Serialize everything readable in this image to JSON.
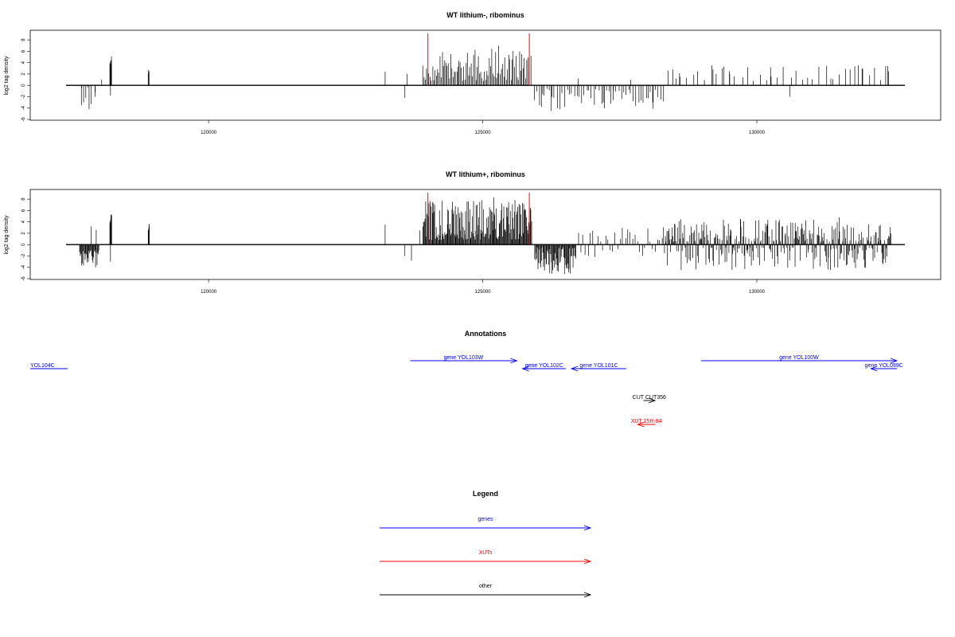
{
  "chart_data": [
    {
      "type": "bar",
      "title": "WT lithium-, ribominus",
      "ylabel": "log2 tag density",
      "xlim": [
        117400,
        132700
      ],
      "ylim": [
        -6,
        9
      ],
      "x_ticks": [
        120000,
        125000,
        130000
      ],
      "x_tick_labels": [
        "120000",
        "125000",
        "130000"
      ],
      "y_ticks": [
        -6,
        -4,
        -2,
        0,
        2,
        4,
        6,
        8
      ],
      "y_tick_labels": [
        "-6",
        "-4",
        "-2",
        "0",
        "2",
        "4",
        "6",
        "8"
      ],
      "red_markers_x": [
        124000,
        125850
      ],
      "segments": [
        {
          "from": 117700,
          "to": 118000,
          "min": 0.3,
          "max": 1.5,
          "step": 110,
          "sign": -1,
          "seed": 11
        },
        {
          "from": 118200,
          "to": 118230,
          "min": 3.5,
          "max": 5.2,
          "step": 6,
          "sign": 1,
          "seed": 12
        },
        {
          "from": 118900,
          "to": 118920,
          "min": 2.0,
          "max": 4.2,
          "step": 8,
          "sign": 1,
          "seed": 13
        },
        {
          "from": 123910,
          "to": 125850,
          "min": 0.8,
          "max": 7.0,
          "step": 22,
          "sign": 1,
          "seed": 14
        },
        {
          "from": 125950,
          "to": 128300,
          "min": 0.6,
          "max": 4.3,
          "step": 45,
          "sign": -1,
          "seed": 15
        },
        {
          "from": 128400,
          "to": 132400,
          "min": 0.8,
          "max": 3.6,
          "step": 110,
          "sign": 1,
          "seed": 16
        }
      ],
      "bars": [
        {
          "x": 117680,
          "y": -3.5
        },
        {
          "x": 117720,
          "y": -3.0
        },
        {
          "x": 117760,
          "y": -2.2
        },
        {
          "x": 117820,
          "y": -4.2
        },
        {
          "x": 117860,
          "y": -3.3
        },
        {
          "x": 117930,
          "y": -2.0
        },
        {
          "x": 118050,
          "y": 1.0
        },
        {
          "x": 118210,
          "y": -1.8
        },
        {
          "x": 123220,
          "y": 2.4
        },
        {
          "x": 123580,
          "y": -2.2
        },
        {
          "x": 123620,
          "y": 2.0
        },
        {
          "x": 125880,
          "y": 5.2
        },
        {
          "x": 126070,
          "y": -3.8
        },
        {
          "x": 126250,
          "y": -4.5
        },
        {
          "x": 126740,
          "y": 1.2
        },
        {
          "x": 127200,
          "y": -3.0
        },
        {
          "x": 127380,
          "y": -2.6
        },
        {
          "x": 127700,
          "y": 1.0
        },
        {
          "x": 128100,
          "y": -3.0
        },
        {
          "x": 128470,
          "y": 2.8
        },
        {
          "x": 128600,
          "y": 1.5
        },
        {
          "x": 129200,
          "y": 2.8
        },
        {
          "x": 129400,
          "y": 3.3
        },
        {
          "x": 129500,
          "y": 2.5
        },
        {
          "x": 130250,
          "y": 3.2
        },
        {
          "x": 130600,
          "y": -2.0
        },
        {
          "x": 131350,
          "y": 1.2
        },
        {
          "x": 131850,
          "y": 3.5
        },
        {
          "x": 131920,
          "y": 3.0
        },
        {
          "x": 132350,
          "y": 3.4
        },
        {
          "x": 132400,
          "y": 2.5
        }
      ]
    },
    {
      "type": "bar",
      "title": "WT lithium+, ribominus",
      "ylabel": "log2 tag density",
      "xlim": [
        117400,
        132700
      ],
      "ylim": [
        -6,
        9
      ],
      "x_ticks": [
        120000,
        125000,
        130000
      ],
      "x_tick_labels": [
        "120000",
        "125000",
        "130000"
      ],
      "y_ticks": [
        -6,
        -4,
        -2,
        0,
        2,
        4,
        6,
        8
      ],
      "y_tick_labels": [
        "-6",
        "-4",
        "-2",
        "0",
        "2",
        "4",
        "6",
        "8"
      ],
      "red_markers_x": [
        124000,
        125850
      ],
      "segments": [
        {
          "from": 117650,
          "to": 118000,
          "min": 1.0,
          "max": 4.2,
          "step": 12,
          "sign": -1,
          "seed": 21
        },
        {
          "from": 118200,
          "to": 118230,
          "min": 3.5,
          "max": 5.8,
          "step": 6,
          "sign": 1,
          "seed": 22
        },
        {
          "from": 118900,
          "to": 118920,
          "min": 2.0,
          "max": 4.2,
          "step": 6,
          "sign": 1,
          "seed": 23
        },
        {
          "from": 123910,
          "to": 125900,
          "min": 0.8,
          "max": 8.0,
          "step": 12,
          "sign": 1,
          "seed": 24
        },
        {
          "from": 125950,
          "to": 126700,
          "min": 0.5,
          "max": 5.2,
          "step": 12,
          "sign": -1,
          "seed": 25
        },
        {
          "from": 126700,
          "to": 128300,
          "min": 0.5,
          "max": 3.0,
          "step": 45,
          "sign": 0,
          "seed": 26
        },
        {
          "from": 128300,
          "to": 132450,
          "min": 0.5,
          "max": 4.5,
          "step": 14,
          "sign": 0,
          "seed": 27
        }
      ],
      "bars": [
        {
          "x": 117860,
          "y": 3.2
        },
        {
          "x": 117950,
          "y": 2.6
        },
        {
          "x": 118210,
          "y": -3.0
        },
        {
          "x": 123220,
          "y": 3.5
        },
        {
          "x": 123580,
          "y": -2.0
        },
        {
          "x": 123700,
          "y": -2.8
        },
        {
          "x": 123850,
          "y": 2.5
        },
        {
          "x": 125200,
          "y": 8.3
        },
        {
          "x": 128400,
          "y": 2.8
        },
        {
          "x": 129450,
          "y": -3.0
        },
        {
          "x": 129700,
          "y": 4.5
        },
        {
          "x": 130700,
          "y": 3.8
        },
        {
          "x": 131500,
          "y": 4.8
        },
        {
          "x": 131650,
          "y": -3.5
        }
      ]
    }
  ],
  "annotations": {
    "title": "Annotations",
    "xlim": [
      117400,
      132700
    ],
    "features": [
      {
        "label": "YOL104C",
        "start": 117400,
        "end": 118050,
        "row": 0,
        "strand": "none",
        "color": "#0000ff",
        "label_at": "start"
      },
      {
        "label": "gene YOL103W",
        "start": 124000,
        "end": 125850,
        "row": -1,
        "strand": "+",
        "color": "#0000ff",
        "label_at": "center"
      },
      {
        "label": "gene YOL102C",
        "start": 125950,
        "end": 126700,
        "row": 0,
        "strand": "-",
        "color": "#0000ff",
        "label_at": "center"
      },
      {
        "label": "gene YOL101C",
        "start": 126800,
        "end": 127750,
        "row": 0,
        "strand": "-",
        "color": "#0000ff",
        "label_at": "center"
      },
      {
        "label": "gene YOL100W",
        "start": 129050,
        "end": 132450,
        "row": -1,
        "strand": "+",
        "color": "#0000ff",
        "label_at": "center"
      },
      {
        "label": "gene YOL099C",
        "start": 132000,
        "end": 132450,
        "row": 0,
        "strand": "-",
        "color": "#0000ff",
        "label_at": "center"
      },
      {
        "label": "CUT CUT356",
        "start": 128050,
        "end": 128250,
        "row": 4,
        "strand": "+",
        "color": "#000000",
        "label_at": "center"
      },
      {
        "label": "XUT 15R-84",
        "start": 127950,
        "end": 128250,
        "row": 7,
        "strand": "-",
        "color": "#ff0000",
        "label_at": "center"
      }
    ]
  },
  "legend": {
    "title": "Legend",
    "items": [
      {
        "label": "genes",
        "color": "#0000ff"
      },
      {
        "label": "XUTs",
        "color": "#ff0000"
      },
      {
        "label": "other",
        "color": "#000000"
      }
    ]
  }
}
